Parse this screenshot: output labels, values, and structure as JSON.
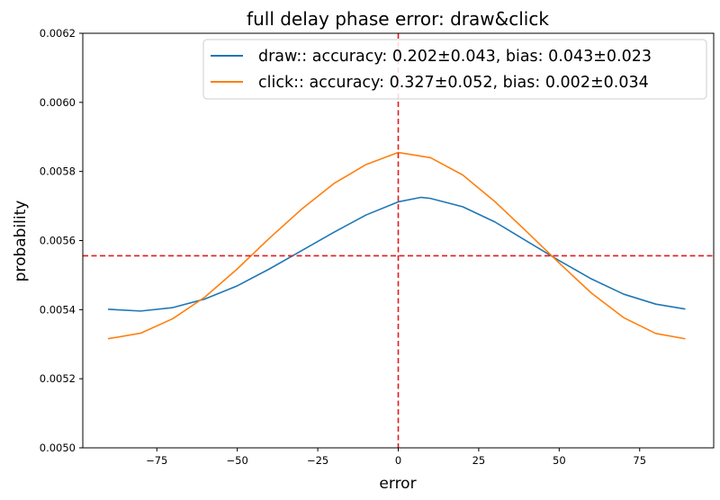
{
  "chart_data": {
    "type": "line",
    "title": "full delay phase error: draw&click",
    "xlabel": "error",
    "ylabel": "probability",
    "xlim": [
      -98,
      98
    ],
    "ylim": [
      0.005,
      0.0062
    ],
    "xticks": [
      -75,
      -50,
      -25,
      0,
      25,
      50,
      75
    ],
    "xtick_labels": [
      "−75",
      "−50",
      "−25",
      "0",
      "25",
      "50",
      "75"
    ],
    "yticks": [
      0.005,
      0.0052,
      0.0054,
      0.0056,
      0.0058,
      0.006,
      0.0062
    ],
    "ytick_labels": [
      "0.0050",
      "0.0052",
      "0.0054",
      "0.0056",
      "0.0058",
      "0.0060",
      "0.0062"
    ],
    "grid": false,
    "legend_position": "top-right",
    "reference_lines": [
      {
        "orientation": "vertical",
        "value": 0,
        "style": "dashed",
        "color": "#e41a1c"
      },
      {
        "orientation": "horizontal",
        "value": 0.005556,
        "style": "dashed",
        "color": "#e41a1c"
      }
    ],
    "series": [
      {
        "name": "draw:: accuracy: 0.202±0.043, bias: 0.043±0.023",
        "color": "#1f77b4",
        "x": [
          -90,
          -80,
          -70,
          -60,
          -50,
          -40,
          -30,
          -20,
          -10,
          0,
          7,
          10,
          20,
          30,
          40,
          50,
          60,
          70,
          80,
          89
        ],
        "y": [
          0.005401,
          0.005396,
          0.005406,
          0.005431,
          0.005469,
          0.005518,
          0.005571,
          0.005624,
          0.005674,
          0.005712,
          0.005725,
          0.005722,
          0.005698,
          0.005654,
          0.005598,
          0.005542,
          0.005489,
          0.005445,
          0.005416,
          0.005402
        ]
      },
      {
        "name": "click:: accuracy: 0.327±0.052, bias: 0.002±0.034",
        "color": "#ff7f0e",
        "x": [
          -90,
          -80,
          -70,
          -60,
          -50,
          -40,
          -30,
          -20,
          -10,
          0,
          10,
          20,
          30,
          40,
          50,
          60,
          70,
          80,
          89
        ],
        "y": [
          0.005316,
          0.005332,
          0.005374,
          0.005437,
          0.005518,
          0.005607,
          0.005691,
          0.005765,
          0.00582,
          0.005855,
          0.00584,
          0.00579,
          0.005713,
          0.005625,
          0.005535,
          0.005448,
          0.005377,
          0.005331,
          0.005316
        ]
      }
    ]
  }
}
